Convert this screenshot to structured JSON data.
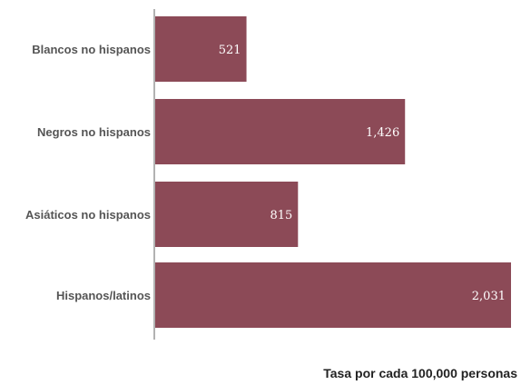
{
  "chart_data": {
    "type": "bar",
    "orientation": "horizontal",
    "categories": [
      "Blancos no hispanos",
      "Negros no hispanos",
      "Asiáticos no hispanos",
      "Hispanos/latinos"
    ],
    "values": [
      521,
      1426,
      815,
      2031
    ],
    "value_labels": [
      "521",
      "1,426",
      "815",
      "2,031"
    ],
    "title": "",
    "xlabel": "Tasa por cada 100,000 personas",
    "ylabel": "",
    "xlim": [
      0,
      2031
    ],
    "grid": false,
    "legend": "none",
    "bar_color": "#8c4a57"
  }
}
